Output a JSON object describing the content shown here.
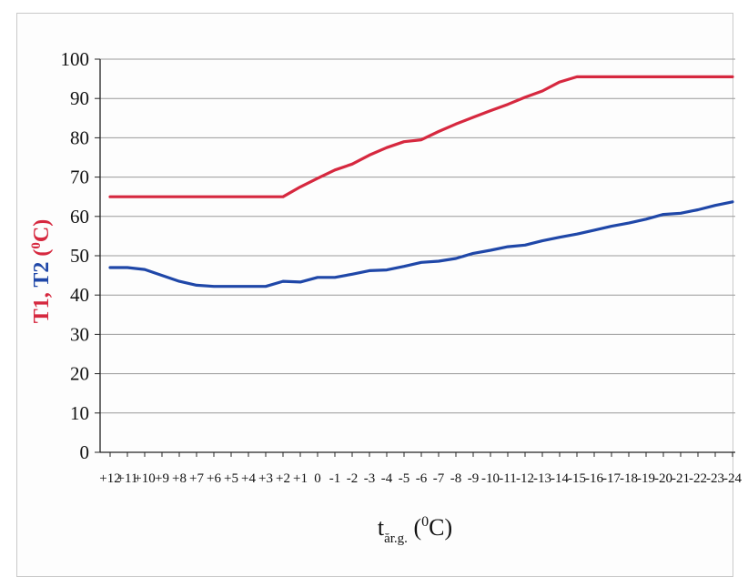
{
  "chart_data": {
    "type": "line",
    "xlabel": {
      "main": "t",
      "sub": "ăr.g.",
      "sup": "0",
      "open": " (",
      "unit": "C)"
    },
    "ylabel": {
      "t1": "T1,",
      "t2": "T2",
      "open": " (",
      "sup": "0",
      "unit": "C)"
    },
    "ylim": [
      0,
      100
    ],
    "yticks": [
      0,
      10,
      20,
      30,
      40,
      50,
      60,
      70,
      80,
      90,
      100
    ],
    "grid": true,
    "categories": [
      "+12",
      "+11",
      "+10",
      "+9",
      "+8",
      "+7",
      "+6",
      "+5",
      "+4",
      "+3",
      "+2",
      "+1",
      "0",
      "-1",
      "-2",
      "-3",
      "-4",
      "-5",
      "-6",
      "-7",
      "-8",
      "-9",
      "-10",
      "-11",
      "-12",
      "-13",
      "-14",
      "-15",
      "-16",
      "-17",
      "-18",
      "-19",
      "-20",
      "-21",
      "-22",
      "-23",
      "-24"
    ],
    "series": [
      {
        "key": "T1",
        "color": "#d6283f",
        "values": [
          65,
          65,
          65,
          65,
          65,
          65,
          65,
          65,
          65,
          65,
          65,
          67.5,
          69.7,
          71.8,
          73.3,
          75.6,
          77.5,
          79,
          79.5,
          81.6,
          83.5,
          85.2,
          86.9,
          88.5,
          90.3,
          91.9,
          94.2,
          95.5,
          95.5,
          95.5,
          95.5,
          95.5,
          95.5,
          95.5,
          95.5,
          95.5,
          95.5
        ]
      },
      {
        "key": "T2",
        "color": "#1f47a8",
        "values": [
          47,
          47,
          46.5,
          45,
          43.5,
          42.5,
          42.2,
          42.2,
          42.2,
          42.2,
          43.5,
          43.3,
          44.5,
          44.5,
          45.3,
          46.2,
          46.4,
          47.3,
          48.3,
          48.6,
          49.3,
          50.6,
          51.4,
          52.3,
          52.7,
          53.8,
          54.7,
          55.5,
          56.5,
          57.5,
          58.3,
          59.3,
          60.5,
          60.8,
          61.7,
          62.8,
          63.7
        ]
      }
    ]
  }
}
